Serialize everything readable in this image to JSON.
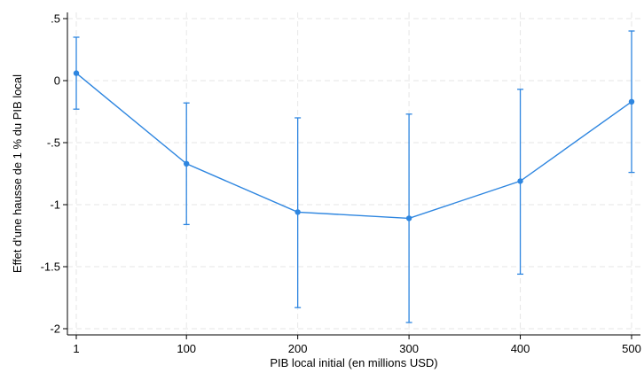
{
  "chart_data": {
    "type": "line",
    "title": "",
    "xlabel": "PIB local initial (en millions USD)",
    "ylabel": "Effet d'une hausse de 1 % du PIB local",
    "xticks": [
      1,
      100,
      200,
      300,
      400,
      500
    ],
    "xtick_labels": [
      "1",
      "100",
      "200",
      "300",
      "400",
      "500"
    ],
    "yticks": [
      0.5,
      0,
      -0.5,
      -1,
      -1.5,
      -2
    ],
    "ytick_labels": [
      ".5",
      "0",
      "-.5",
      "-1",
      "-1.5",
      "-2"
    ],
    "xlim": [
      1,
      500
    ],
    "ylim": [
      -2.05,
      0.55
    ],
    "grid": true,
    "color": "#2e86e0",
    "series": [
      {
        "x": [
          1,
          100,
          200,
          300,
          400,
          500
        ],
        "y": [
          0.06,
          -0.67,
          -1.06,
          -1.11,
          -0.81,
          -0.17
        ],
        "ci_low": [
          -0.23,
          -1.16,
          -1.83,
          -1.95,
          -1.56,
          -0.74
        ],
        "ci_high": [
          0.35,
          -0.18,
          -0.3,
          -0.27,
          -0.07,
          0.4
        ]
      }
    ]
  }
}
